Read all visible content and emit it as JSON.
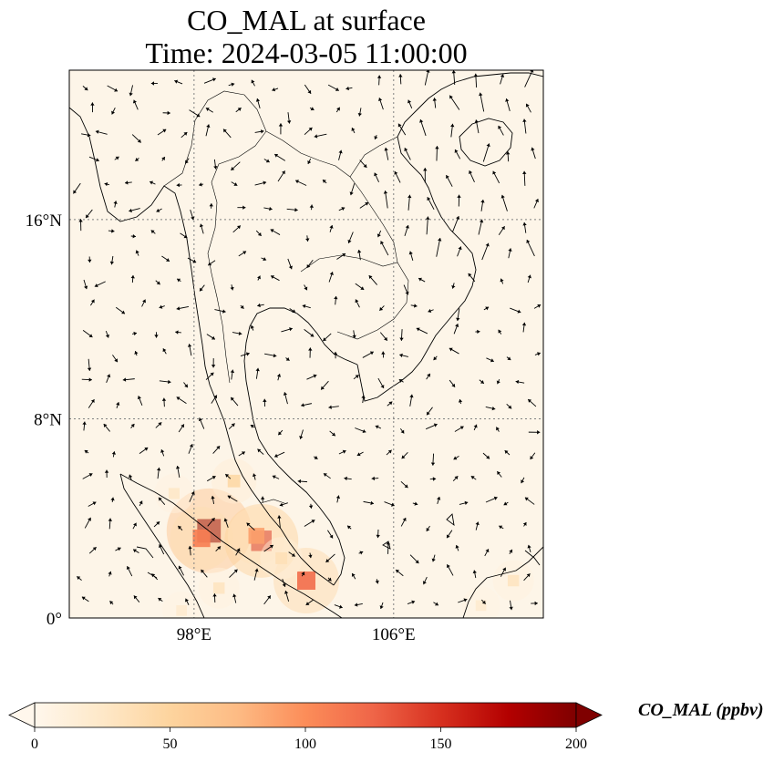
{
  "map": {
    "title_line1": "CO_MAL at surface",
    "title_line2": "Time: 2024-03-05 11:00:00",
    "lon_range": [
      93,
      112
    ],
    "lat_range": [
      0,
      22
    ],
    "lon_ticks": [
      {
        "value": 98,
        "label": "98°E"
      },
      {
        "value": 106,
        "label": "106°E"
      }
    ],
    "lat_ticks": [
      {
        "value": 0,
        "label": "0°"
      },
      {
        "value": 8,
        "label": "8°N"
      },
      {
        "value": 16,
        "label": "16°N"
      }
    ],
    "gridlines": true,
    "colors": {
      "background": "#fdf5e8",
      "coast": "#000000",
      "grid": "#808080"
    },
    "colorbar": {
      "label": "CO_MAL (ppbv)",
      "min": 0,
      "max": 200,
      "extend": "both",
      "colormap": "OrRd",
      "ticks": [
        {
          "value": 0,
          "label": "0"
        },
        {
          "value": 50,
          "label": "50"
        },
        {
          "value": 100,
          "label": "100"
        },
        {
          "value": 150,
          "label": "150"
        },
        {
          "value": 200,
          "label": "200"
        }
      ],
      "stops": [
        "#fff7ec",
        "#fee8c8",
        "#fdd49e",
        "#fdbb84",
        "#fc8d59",
        "#ef6548",
        "#d7301f",
        "#b30000",
        "#7f0000"
      ]
    },
    "hotspots": [
      {
        "lon": 98.6,
        "lat": 3.5,
        "value": 190
      },
      {
        "lon": 98.3,
        "lat": 3.2,
        "value": 110
      },
      {
        "lon": 100.7,
        "lat": 3.1,
        "value": 150
      },
      {
        "lon": 100.5,
        "lat": 3.3,
        "value": 90
      },
      {
        "lon": 99.6,
        "lat": 5.5,
        "value": 45
      },
      {
        "lon": 102.5,
        "lat": 1.5,
        "value": 120
      },
      {
        "lon": 97.2,
        "lat": 5.0,
        "value": 25
      },
      {
        "lon": 99.0,
        "lat": 1.2,
        "value": 30
      },
      {
        "lon": 97.5,
        "lat": 0.3,
        "value": 20
      },
      {
        "lon": 101.5,
        "lat": 2.4,
        "value": 35
      },
      {
        "lon": 110.8,
        "lat": 1.5,
        "value": 30
      },
      {
        "lon": 109.5,
        "lat": 0.5,
        "value": 20
      }
    ]
  }
}
